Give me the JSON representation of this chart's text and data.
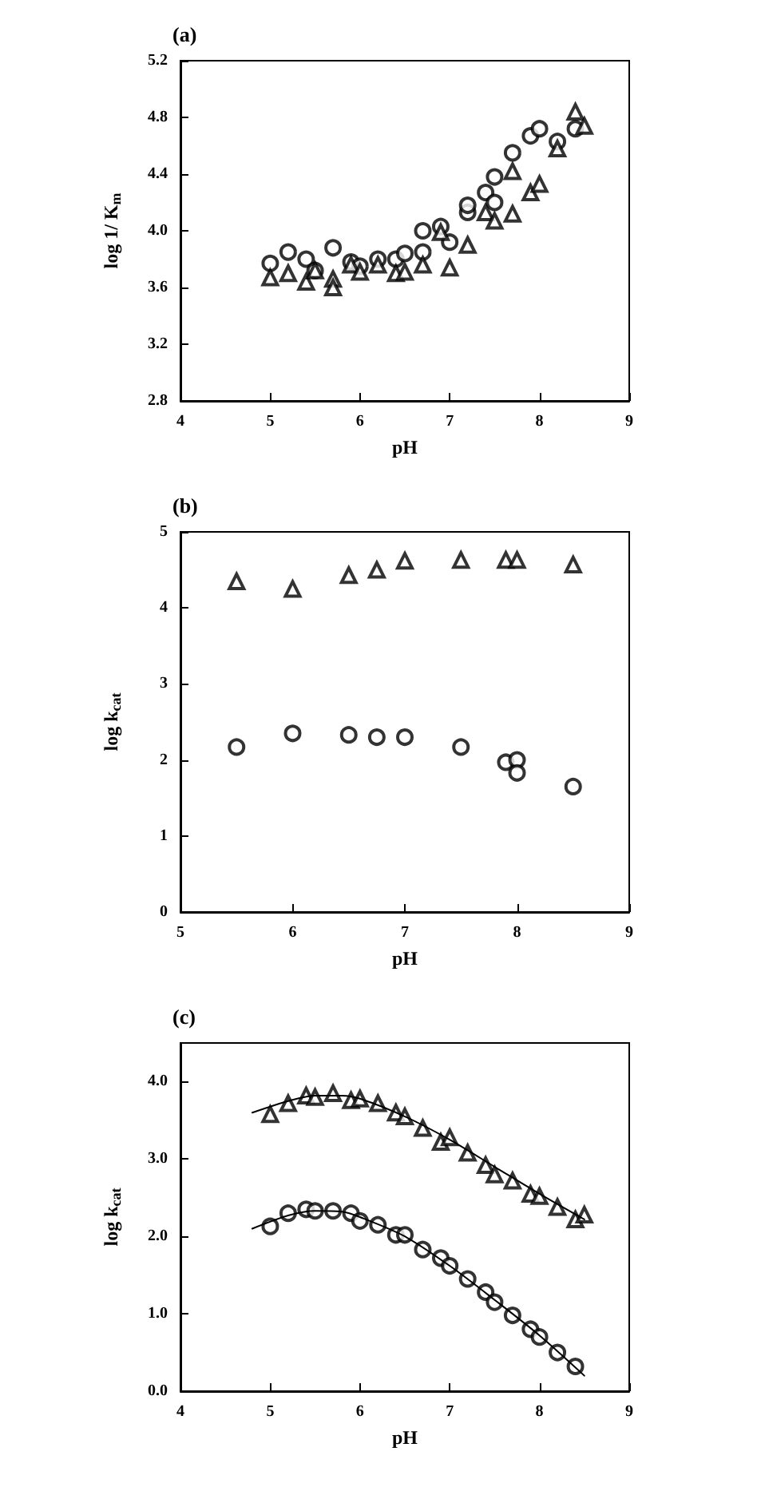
{
  "chart_data": [
    {
      "type": "scatter",
      "title": "(a)",
      "xlabel": "pH",
      "ylabel": "log 1/ K$_{m}$",
      "xlim": [
        4,
        9
      ],
      "xticks": [
        4,
        5,
        6,
        7,
        8,
        9
      ],
      "ylim": [
        2.8,
        5.2
      ],
      "yticks": [
        2.8,
        3.2,
        3.6,
        {
          "value": 4,
          "label": "4.0"
        },
        4.4,
        4.8,
        5.2
      ],
      "grid": false,
      "series": [
        {
          "color": "#000000",
          "marker": "circle",
          "x": [
            5.0,
            5.2,
            5.4,
            5.5,
            5.7,
            5.9,
            6.0,
            6.2,
            6.4,
            6.5,
            6.7,
            6.7,
            6.9,
            7.0,
            7.2,
            7.2,
            7.4,
            7.5,
            7.5,
            7.7,
            7.9,
            8.0,
            8.2,
            8.4
          ],
          "values": [
            3.77,
            3.85,
            3.8,
            3.72,
            3.88,
            3.78,
            3.75,
            3.8,
            3.8,
            3.84,
            3.85,
            4.0,
            4.03,
            3.92,
            4.13,
            4.18,
            4.27,
            4.2,
            4.38,
            4.55,
            4.67,
            4.72,
            4.63,
            4.72
          ]
        },
        {
          "color": "#000000",
          "marker": "triangle",
          "x": [
            5.0,
            5.2,
            5.4,
            5.5,
            5.7,
            5.7,
            5.9,
            6.0,
            6.2,
            6.4,
            6.5,
            6.7,
            6.9,
            7.0,
            7.2,
            7.4,
            7.5,
            7.7,
            7.7,
            7.9,
            8.0,
            8.2,
            8.4,
            8.5
          ],
          "values": [
            3.67,
            3.7,
            3.64,
            3.72,
            3.66,
            3.6,
            3.76,
            3.71,
            3.76,
            3.7,
            3.71,
            3.76,
            3.99,
            3.74,
            3.9,
            4.13,
            4.07,
            4.12,
            4.42,
            4.27,
            4.33,
            4.58,
            4.84,
            4.74
          ]
        }
      ]
    },
    {
      "type": "scatter",
      "title": "(b)",
      "xlabel": "pH",
      "ylabel": "log k$_{cat}$",
      "xlim": [
        5,
        9
      ],
      "xticks": [
        5,
        6,
        7,
        8,
        9
      ],
      "ylim": [
        0,
        5
      ],
      "yticks": [
        0,
        1,
        2,
        3,
        4,
        5
      ],
      "grid": false,
      "series": [
        {
          "color": "#000000",
          "marker": "triangle",
          "x": [
            5.5,
            6.0,
            6.5,
            6.75,
            7.0,
            7.5,
            7.9,
            8.0,
            8.5
          ],
          "values": [
            4.35,
            4.25,
            4.43,
            4.5,
            4.62,
            4.63,
            4.63,
            4.63,
            4.57
          ]
        },
        {
          "color": "#000000",
          "marker": "circle",
          "x": [
            5.5,
            6.0,
            6.5,
            6.75,
            7.0,
            7.5,
            7.9,
            8.0,
            8.0,
            8.5
          ],
          "values": [
            2.17,
            2.35,
            2.33,
            2.3,
            2.3,
            2.17,
            1.97,
            2.0,
            1.83,
            1.65
          ]
        }
      ]
    },
    {
      "type": "scatter",
      "title": "(c)",
      "xlabel": "pH",
      "ylabel": "log k$_{cat}$",
      "xlim": [
        4,
        9
      ],
      "xticks": [
        4,
        5,
        6,
        7,
        8,
        9
      ],
      "ylim": [
        0,
        4.5
      ],
      "yticks": [
        {
          "value": 0,
          "label": "0.0"
        },
        {
          "value": 1,
          "label": "1.0"
        },
        {
          "value": 2,
          "label": "2.0"
        },
        {
          "value": 3,
          "label": "3.0"
        },
        {
          "value": 4,
          "label": "4.0"
        }
      ],
      "grid": false,
      "series": [
        {
          "color": "#000000",
          "marker": "triangle",
          "x": [
            5.0,
            5.2,
            5.4,
            5.5,
            5.7,
            5.9,
            6.0,
            6.2,
            6.4,
            6.5,
            6.7,
            6.9,
            7.0,
            7.2,
            7.4,
            7.5,
            7.7,
            7.9,
            8.0,
            8.2,
            8.4,
            8.5
          ],
          "values": [
            3.58,
            3.72,
            3.82,
            3.8,
            3.85,
            3.76,
            3.78,
            3.72,
            3.6,
            3.55,
            3.4,
            3.22,
            3.28,
            3.08,
            2.92,
            2.8,
            2.72,
            2.55,
            2.52,
            2.38,
            2.22,
            2.28
          ]
        },
        {
          "color": "#000000",
          "marker": "circle",
          "x": [
            5.0,
            5.2,
            5.4,
            5.5,
            5.7,
            5.9,
            6.0,
            6.2,
            6.4,
            6.5,
            6.7,
            6.9,
            7.0,
            7.2,
            7.4,
            7.5,
            7.7,
            7.9,
            8.0,
            8.2,
            8.4
          ],
          "values": [
            2.13,
            2.3,
            2.35,
            2.33,
            2.33,
            2.3,
            2.2,
            2.15,
            2.02,
            2.02,
            1.83,
            1.72,
            1.62,
            1.45,
            1.28,
            1.15,
            0.98,
            0.8,
            0.7,
            0.5,
            0.32
          ]
        },
        {
          "type": "line",
          "color": "#000000",
          "marker": "none",
          "line_style": "solid",
          "x": [
            4.8,
            5.2,
            5.5,
            5.8,
            6.0,
            6.5,
            7.0,
            7.5,
            8.0,
            8.5
          ],
          "values": [
            3.6,
            3.75,
            3.82,
            3.82,
            3.78,
            3.55,
            3.25,
            2.9,
            2.55,
            2.22
          ]
        },
        {
          "type": "line",
          "color": "#000000",
          "marker": "none",
          "line_style": "solid",
          "x": [
            4.8,
            5.2,
            5.5,
            5.8,
            6.0,
            6.5,
            7.0,
            7.5,
            8.0,
            8.5
          ],
          "values": [
            2.1,
            2.27,
            2.33,
            2.32,
            2.25,
            2.0,
            1.62,
            1.18,
            0.72,
            0.2
          ]
        }
      ]
    }
  ]
}
